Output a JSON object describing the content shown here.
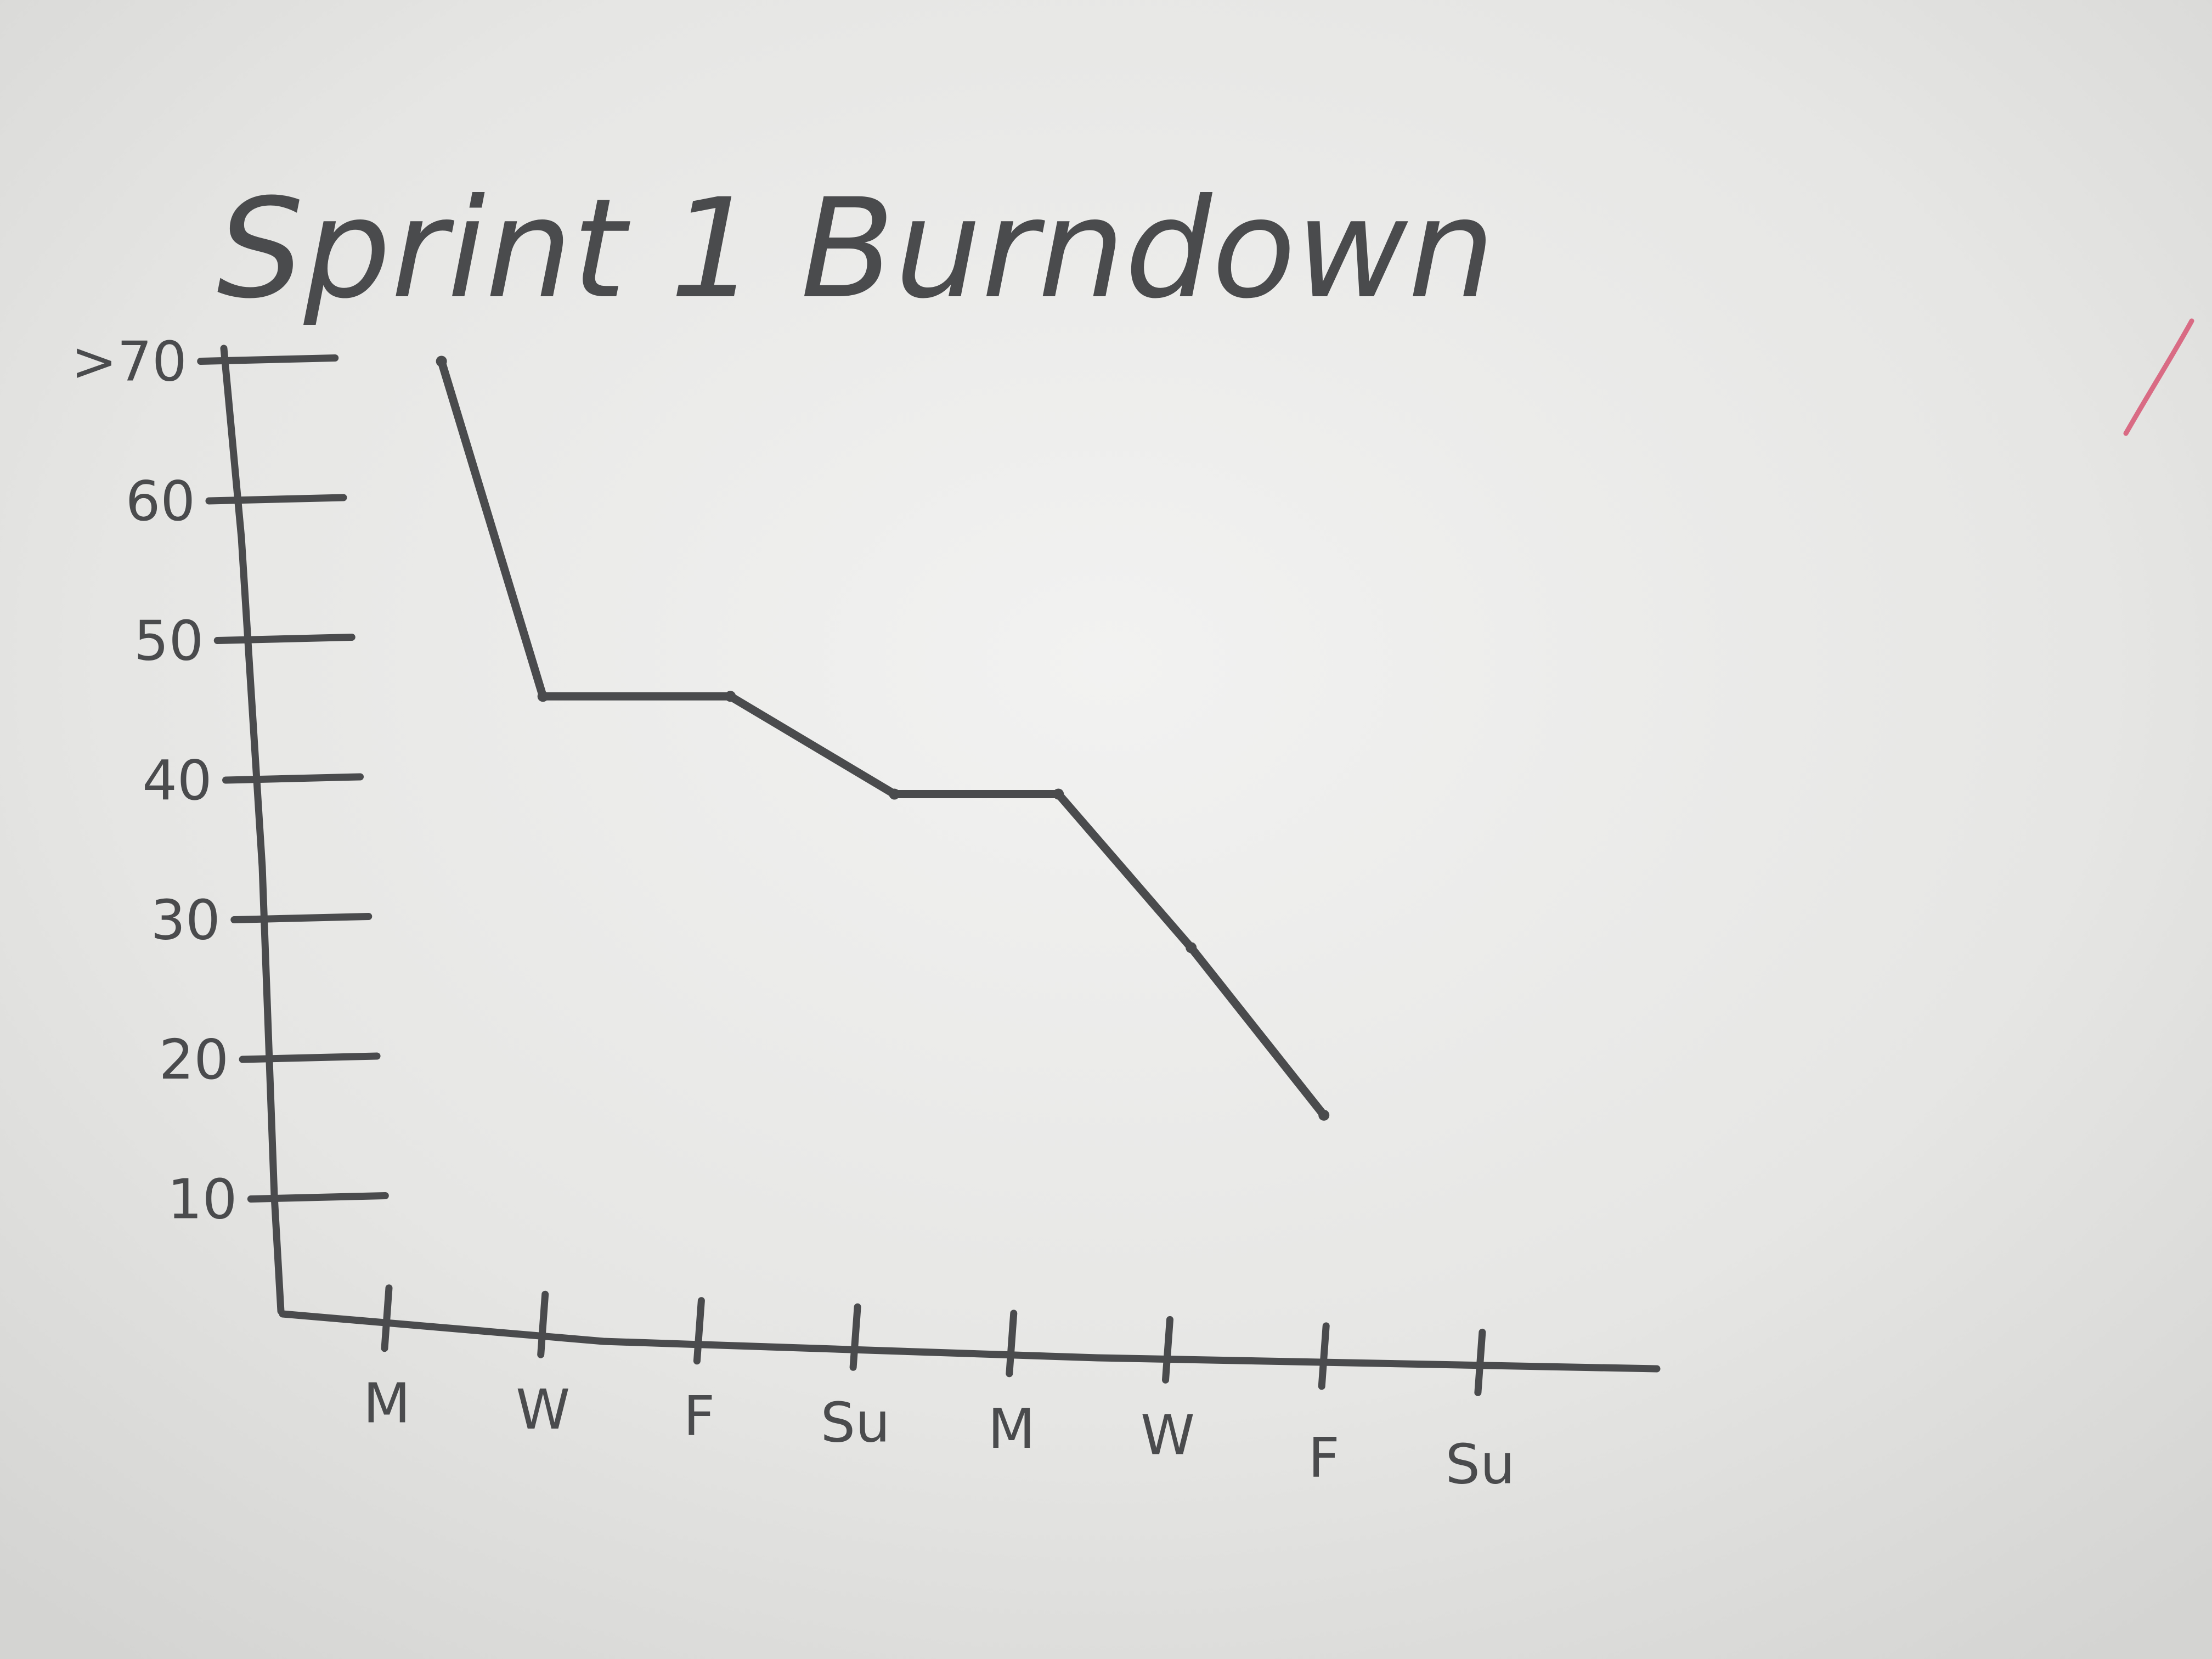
{
  "chart_data": {
    "type": "line",
    "title": "Sprint 1 Burndown",
    "y_ticks": [
      "10",
      "20",
      "30",
      "40",
      "50",
      "60",
      ">70"
    ],
    "ylim": [
      0,
      72
    ],
    "x_ticks": [
      "M",
      "W",
      "F",
      "Su",
      "M",
      "W",
      "F",
      "Su"
    ],
    "series": [
      {
        "x": [
          0.35,
          1.0,
          2.2,
          3.25,
          4.3,
          5.15,
          6.0
        ],
        "values": [
          70,
          46,
          46,
          39,
          39,
          28,
          16
        ]
      }
    ],
    "grid": false,
    "legend": "none"
  },
  "colors": {
    "board": "#e4e4e2",
    "marker": "#4a4b4d",
    "pink_mark": "#d96b84"
  }
}
